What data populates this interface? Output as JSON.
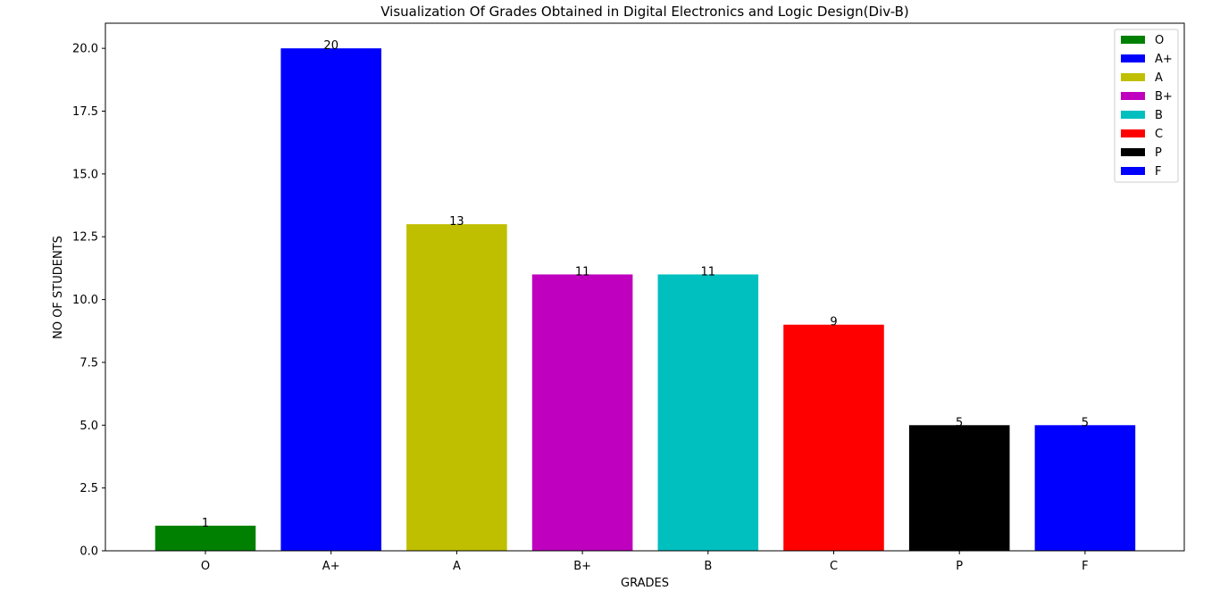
{
  "chart_data": {
    "type": "bar",
    "title": "Visualization Of Grades Obtained in Digital Electronics and Logic Design(Div-B)",
    "xlabel": "GRADES",
    "ylabel": "NO OF STUDENTS",
    "categories": [
      "O",
      "A+",
      "A",
      "B+",
      "B",
      "C",
      "P",
      "F"
    ],
    "values": [
      1,
      20,
      13,
      11,
      11,
      9,
      5,
      5
    ],
    "colors": [
      "#008000",
      "#0000ff",
      "#bfbf00",
      "#bf00bf",
      "#00bfbf",
      "#ff0000",
      "#000000",
      "#0000ff"
    ],
    "ylim": [
      0,
      21
    ],
    "yticks": [
      "0.0",
      "2.5",
      "5.0",
      "7.5",
      "10.0",
      "12.5",
      "15.0",
      "17.5",
      "20.0"
    ],
    "grid": false,
    "legend_position": "top-right",
    "legend": [
      "O",
      "A+",
      "A",
      "B+",
      "B",
      "C",
      "P",
      "F"
    ]
  }
}
